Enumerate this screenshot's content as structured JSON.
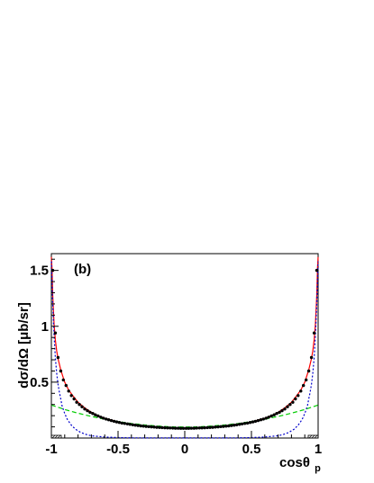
{
  "chart_data": {
    "type": "line",
    "panel_label": "(b)",
    "xlabel": "cosθ",
    "xlabel_sub": "p",
    "ylabel": "dσ/dΩ [μb/sr]",
    "xlim": [
      -1,
      1
    ],
    "ylim": [
      0,
      1.65
    ],
    "x_ticks": [
      -1,
      -0.5,
      0,
      0.5,
      1
    ],
    "x_tick_labels": [
      "-1",
      "-0.5",
      "0",
      "0.5",
      "1"
    ],
    "y_ticks": [
      0.5,
      1,
      1.5
    ],
    "y_tick_labels": [
      "0.5",
      "1",
      "1.5"
    ],
    "grid": false,
    "series": [
      {
        "style": "points",
        "color": "#000000",
        "x": [
          -0.99,
          -0.97,
          -0.95,
          -0.93,
          -0.91,
          -0.89,
          -0.87,
          -0.85,
          -0.83,
          -0.81,
          -0.79,
          -0.77,
          -0.75,
          -0.73,
          -0.71,
          -0.69,
          -0.67,
          -0.65,
          -0.63,
          -0.61,
          -0.59,
          -0.57,
          -0.55,
          -0.53,
          -0.51,
          -0.49,
          -0.47,
          -0.45,
          -0.43,
          -0.41,
          -0.39,
          -0.37,
          -0.35,
          -0.33,
          -0.31,
          -0.29,
          -0.27,
          -0.25,
          -0.23,
          -0.21,
          -0.19,
          -0.17,
          -0.15,
          -0.13,
          -0.11,
          -0.09,
          -0.07,
          -0.05,
          -0.03,
          -0.01,
          0.01,
          0.03,
          0.05,
          0.07,
          0.09,
          0.11,
          0.13,
          0.15,
          0.17,
          0.19,
          0.21,
          0.23,
          0.25,
          0.27,
          0.29,
          0.31,
          0.33,
          0.35,
          0.37,
          0.39,
          0.41,
          0.43,
          0.45,
          0.47,
          0.49,
          0.51,
          0.53,
          0.55,
          0.57,
          0.59,
          0.61,
          0.63,
          0.65,
          0.67,
          0.69,
          0.71,
          0.73,
          0.75,
          0.77,
          0.79,
          0.81,
          0.83,
          0.85,
          0.87,
          0.89,
          0.91,
          0.93,
          0.95,
          0.97,
          0.99
        ],
        "y": [
          1.5,
          0.94,
          0.72,
          0.6,
          0.52,
          0.47,
          0.42,
          0.38,
          0.35,
          0.32,
          0.3,
          0.28,
          0.26,
          0.245,
          0.23,
          0.22,
          0.208,
          0.197,
          0.187,
          0.178,
          0.17,
          0.163,
          0.156,
          0.15,
          0.144,
          0.139,
          0.134,
          0.13,
          0.126,
          0.122,
          0.118,
          0.115,
          0.112,
          0.109,
          0.106,
          0.104,
          0.102,
          0.1,
          0.098,
          0.096,
          0.095,
          0.093,
          0.092,
          0.091,
          0.09,
          0.089,
          0.088,
          0.088,
          0.087,
          0.087,
          0.087,
          0.087,
          0.088,
          0.088,
          0.089,
          0.09,
          0.091,
          0.092,
          0.093,
          0.095,
          0.096,
          0.098,
          0.1,
          0.102,
          0.104,
          0.106,
          0.109,
          0.112,
          0.115,
          0.118,
          0.122,
          0.126,
          0.13,
          0.134,
          0.139,
          0.144,
          0.15,
          0.156,
          0.163,
          0.17,
          0.178,
          0.187,
          0.197,
          0.208,
          0.22,
          0.23,
          0.245,
          0.26,
          0.28,
          0.3,
          0.32,
          0.35,
          0.38,
          0.42,
          0.47,
          0.52,
          0.6,
          0.72,
          0.94,
          1.5
        ]
      },
      {
        "style": "solid",
        "color": "#ff0000",
        "x": [
          -1,
          -0.995,
          -0.99,
          -0.98,
          -0.97,
          -0.96,
          -0.95,
          -0.93,
          -0.9,
          -0.87,
          -0.84,
          -0.8,
          -0.75,
          -0.7,
          -0.65,
          -0.6,
          -0.5,
          -0.4,
          -0.3,
          -0.2,
          -0.1,
          0,
          0.1,
          0.2,
          0.3,
          0.4,
          0.5,
          0.6,
          0.65,
          0.7,
          0.75,
          0.8,
          0.84,
          0.87,
          0.9,
          0.93,
          0.95,
          0.96,
          0.97,
          0.98,
          0.99,
          0.995,
          1
        ],
        "y": [
          1.62,
          1.52,
          1.28,
          1.02,
          0.88,
          0.78,
          0.71,
          0.61,
          0.5,
          0.43,
          0.38,
          0.32,
          0.27,
          0.23,
          0.2,
          0.178,
          0.144,
          0.122,
          0.106,
          0.096,
          0.09,
          0.087,
          0.09,
          0.096,
          0.106,
          0.122,
          0.144,
          0.178,
          0.2,
          0.23,
          0.27,
          0.32,
          0.38,
          0.43,
          0.5,
          0.61,
          0.71,
          0.78,
          0.88,
          1.02,
          1.28,
          1.52,
          1.62
        ]
      },
      {
        "style": "dotted",
        "color": "#0000cc",
        "x": [
          -1,
          -0.99,
          -0.98,
          -0.97,
          -0.96,
          -0.95,
          -0.94,
          -0.93,
          -0.92,
          -0.9,
          -0.88,
          -0.85,
          -0.82,
          -0.78,
          -0.74,
          -0.7,
          -0.6,
          -0.5,
          -0.4,
          -0.2,
          0,
          0.2,
          0.4,
          0.5,
          0.6,
          0.7,
          0.74,
          0.78,
          0.82,
          0.85,
          0.88,
          0.9,
          0.92,
          0.93,
          0.94,
          0.95,
          0.96,
          0.97,
          0.98,
          0.99,
          1
        ],
        "y": [
          1.58,
          1.2,
          0.92,
          0.72,
          0.58,
          0.48,
          0.41,
          0.35,
          0.29,
          0.22,
          0.165,
          0.115,
          0.08,
          0.05,
          0.032,
          0.02,
          0.009,
          0.004,
          0.002,
          0.001,
          0.001,
          0.001,
          0.002,
          0.004,
          0.009,
          0.02,
          0.032,
          0.05,
          0.08,
          0.115,
          0.165,
          0.22,
          0.29,
          0.35,
          0.41,
          0.48,
          0.58,
          0.72,
          0.92,
          1.2,
          1.58
        ]
      },
      {
        "style": "dashed",
        "color": "#00cc00",
        "x": [
          -1,
          -0.9,
          -0.8,
          -0.7,
          -0.6,
          -0.5,
          -0.4,
          -0.3,
          -0.2,
          -0.1,
          0,
          0.1,
          0.2,
          0.3,
          0.4,
          0.5,
          0.6,
          0.7,
          0.8,
          0.9,
          1
        ],
        "y": [
          0.295,
          0.255,
          0.222,
          0.193,
          0.168,
          0.147,
          0.13,
          0.117,
          0.107,
          0.1,
          0.098,
          0.1,
          0.107,
          0.117,
          0.13,
          0.147,
          0.168,
          0.193,
          0.222,
          0.255,
          0.295
        ]
      }
    ]
  }
}
